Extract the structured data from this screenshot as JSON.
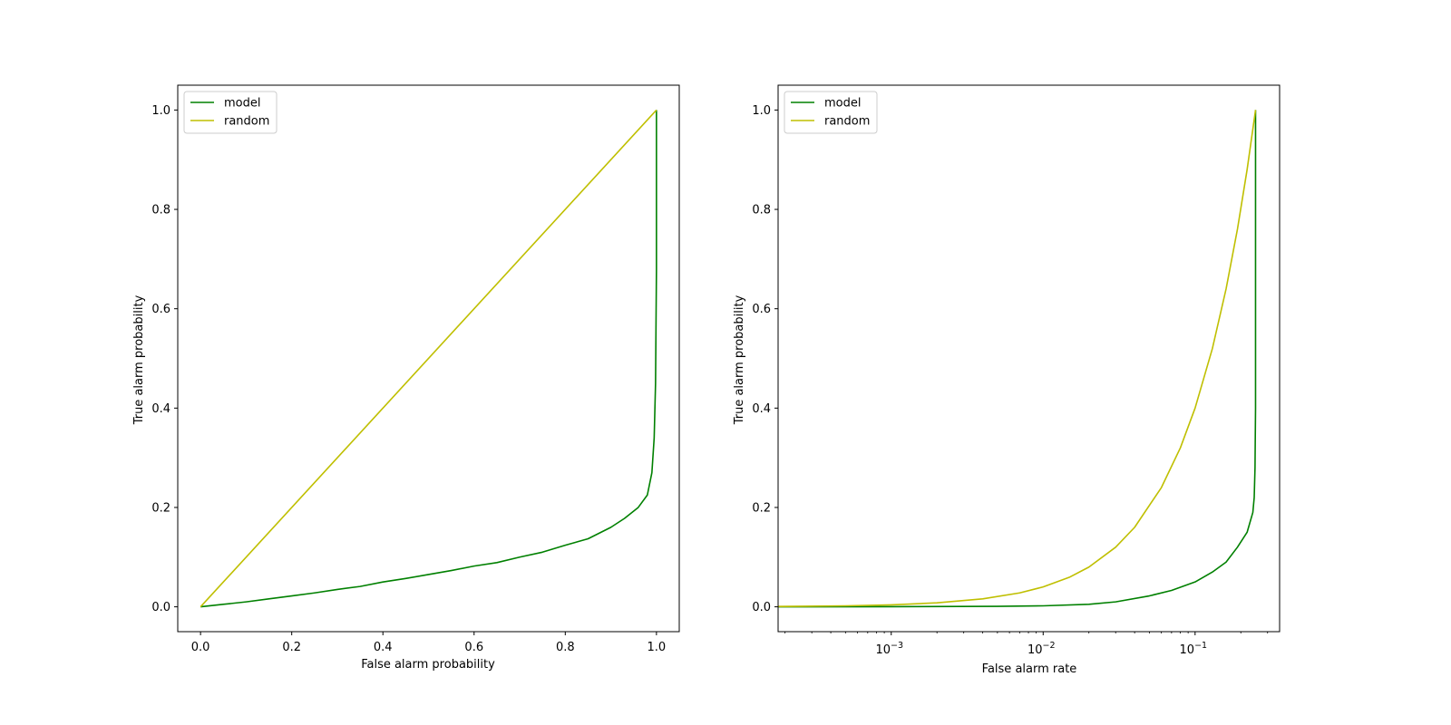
{
  "chart_data": [
    {
      "type": "line",
      "title": "",
      "xlabel": "False alarm probability",
      "ylabel": "True alarm probability",
      "xscale": "linear",
      "xlim": [
        -0.05,
        1.05
      ],
      "ylim": [
        -0.05,
        1.05
      ],
      "xticks": [
        {
          "value": 0.0,
          "label": "0.0"
        },
        {
          "value": 0.2,
          "label": "0.2"
        },
        {
          "value": 0.4,
          "label": "0.4"
        },
        {
          "value": 0.6,
          "label": "0.6"
        },
        {
          "value": 0.8,
          "label": "0.8"
        },
        {
          "value": 1.0,
          "label": "1.0"
        }
      ],
      "yticks": [
        {
          "value": 0.0,
          "label": "0.0"
        },
        {
          "value": 0.2,
          "label": "0.2"
        },
        {
          "value": 0.4,
          "label": "0.4"
        },
        {
          "value": 0.6,
          "label": "0.6"
        },
        {
          "value": 0.8,
          "label": "0.8"
        },
        {
          "value": 1.0,
          "label": "1.0"
        }
      ],
      "grid": false,
      "legend": "top-left",
      "series": [
        {
          "name": "model",
          "color": "#008000",
          "points": [
            [
              0,
              0
            ],
            [
              0.05,
              0.005
            ],
            [
              0.1,
              0.01
            ],
            [
              0.15,
              0.016
            ],
            [
              0.2,
              0.022
            ],
            [
              0.25,
              0.028
            ],
            [
              0.3,
              0.035
            ],
            [
              0.35,
              0.041
            ],
            [
              0.4,
              0.05
            ],
            [
              0.45,
              0.057
            ],
            [
              0.5,
              0.065
            ],
            [
              0.55,
              0.073
            ],
            [
              0.6,
              0.082
            ],
            [
              0.65,
              0.089
            ],
            [
              0.7,
              0.1
            ],
            [
              0.75,
              0.11
            ],
            [
              0.8,
              0.124
            ],
            [
              0.85,
              0.137
            ],
            [
              0.9,
              0.16
            ],
            [
              0.93,
              0.178
            ],
            [
              0.96,
              0.2
            ],
            [
              0.98,
              0.225
            ],
            [
              0.99,
              0.27
            ],
            [
              0.995,
              0.34
            ],
            [
              0.998,
              0.45
            ],
            [
              1.0,
              0.68
            ],
            [
              1.0,
              1.0
            ]
          ]
        },
        {
          "name": "random",
          "color": "#bfbf00",
          "points": [
            [
              0,
              0
            ],
            [
              1,
              1
            ]
          ]
        }
      ]
    },
    {
      "type": "line",
      "title": "",
      "xlabel": "False alarm rate",
      "ylabel": "True alarm probability",
      "xscale": "log",
      "xlim": [
        0.00018,
        0.36
      ],
      "ylim": [
        -0.05,
        1.05
      ],
      "xticks": [
        {
          "value": 0.001,
          "base": "10",
          "exp": "−3"
        },
        {
          "value": 0.01,
          "base": "10",
          "exp": "−2"
        },
        {
          "value": 0.1,
          "base": "10",
          "exp": "−1"
        }
      ],
      "yticks": [
        {
          "value": 0.0,
          "label": "0.0"
        },
        {
          "value": 0.2,
          "label": "0.2"
        },
        {
          "value": 0.4,
          "label": "0.4"
        },
        {
          "value": 0.6,
          "label": "0.6"
        },
        {
          "value": 0.8,
          "label": "0.8"
        },
        {
          "value": 1.0,
          "label": "1.0"
        }
      ],
      "grid": false,
      "legend": "top-left",
      "series": [
        {
          "name": "model",
          "color": "#008000",
          "points": [
            [
              0.00018,
              0.0
            ],
            [
              0.001,
              0.0003
            ],
            [
              0.005,
              0.001
            ],
            [
              0.01,
              0.002
            ],
            [
              0.02,
              0.005
            ],
            [
              0.03,
              0.01
            ],
            [
              0.05,
              0.022
            ],
            [
              0.07,
              0.033
            ],
            [
              0.1,
              0.05
            ],
            [
              0.13,
              0.07
            ],
            [
              0.16,
              0.09
            ],
            [
              0.19,
              0.12
            ],
            [
              0.22,
              0.15
            ],
            [
              0.24,
              0.19
            ],
            [
              0.245,
              0.22
            ],
            [
              0.248,
              0.28
            ],
            [
              0.25,
              0.4
            ],
            [
              0.25,
              0.68
            ],
            [
              0.25,
              1.0
            ]
          ]
        },
        {
          "name": "random",
          "color": "#bfbf00",
          "points": [
            [
              0.00018,
              0.0007
            ],
            [
              0.0005,
              0.002
            ],
            [
              0.001,
              0.004
            ],
            [
              0.002,
              0.008
            ],
            [
              0.004,
              0.016
            ],
            [
              0.007,
              0.028
            ],
            [
              0.01,
              0.04
            ],
            [
              0.015,
              0.06
            ],
            [
              0.02,
              0.08
            ],
            [
              0.03,
              0.12
            ],
            [
              0.04,
              0.16
            ],
            [
              0.06,
              0.24
            ],
            [
              0.08,
              0.32
            ],
            [
              0.1,
              0.4
            ],
            [
              0.13,
              0.52
            ],
            [
              0.16,
              0.64
            ],
            [
              0.19,
              0.76
            ],
            [
              0.22,
              0.88
            ],
            [
              0.25,
              1.0
            ]
          ]
        }
      ]
    }
  ]
}
